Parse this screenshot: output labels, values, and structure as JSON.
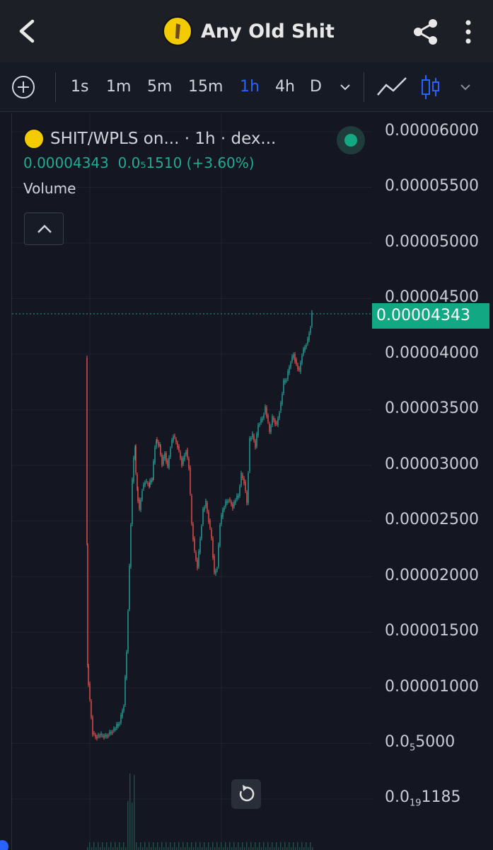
{
  "header": {
    "title": "Any Old Shit",
    "back_icon": "chevron-left-icon",
    "share_icon": "share-icon",
    "more_icon": "more-vertical-icon"
  },
  "toolbar": {
    "add_icon": "plus-circle-icon",
    "intervals": [
      "1s",
      "1m",
      "5m",
      "15m",
      "1h",
      "4h",
      "D"
    ],
    "active_interval": "1h",
    "dropdown_icon": "chevron-down-icon",
    "line_chart_icon": "line-chart-icon",
    "candles_icon": "candles-icon",
    "accent": "#2962ff"
  },
  "legend": {
    "title": "SHIT/WPLS on... · 1h · dex...",
    "price_line": "0.00004343  0.0₅1510 (+3.60%)",
    "volume_label": "Volume",
    "status_color": "#13a884"
  },
  "price_scale": {
    "ticks": [
      "0.00006000",
      "0.00005500",
      "0.00005000",
      "0.00004500",
      "0.00004000",
      "0.00003500",
      "0.00003000",
      "0.00002500",
      "0.00002000",
      "0.00001500",
      "0.00001000"
    ],
    "tick_5000": "0.0",
    "tick_5000_sub": "5",
    "tick_5000_tail": "5000",
    "tick_bottom": "0.0",
    "tick_bottom_sub": "19",
    "tick_bottom_tail": "1185",
    "last_price": "0.00004343"
  },
  "colors": {
    "up": "#26a69a",
    "down": "#ef5350",
    "background": "#141721"
  }
}
